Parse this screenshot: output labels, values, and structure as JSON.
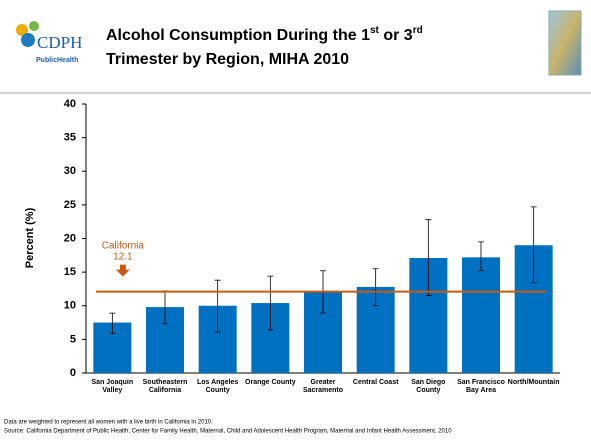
{
  "logo": {
    "text": "CDPH",
    "subtext": "PublicHealth"
  },
  "chart_data": {
    "type": "bar",
    "title": {
      "line1": [
        "Alcohol Consumption During the 1",
        "st",
        " or 3",
        "rd"
      ],
      "line2": "Trimester by Region, MIHA 2010"
    },
    "y_label": "Percent (%)",
    "categories": [
      [
        "San Joaquin",
        "Valley"
      ],
      [
        "Southeastern",
        "California"
      ],
      [
        "Los Angeles",
        "County"
      ],
      [
        "Orange County"
      ],
      [
        "Greater",
        "Sacramento"
      ],
      [
        "Central Coast"
      ],
      [
        "San Diego",
        "County"
      ],
      [
        "San Francisco",
        "Bay Area"
      ],
      [
        "North/Mountain"
      ]
    ],
    "series": [
      {
        "color": "#0070c0",
        "values": [
          7.5,
          9.8,
          10.0,
          10.4,
          12.0,
          12.8,
          17.1,
          17.2,
          19.0
        ],
        "ci_low": [
          5.9,
          7.3,
          6.1,
          6.4,
          8.9,
          10.0,
          11.5,
          15.2,
          13.4
        ],
        "ci_high": [
          8.9,
          12.2,
          13.8,
          14.4,
          15.2,
          15.5,
          22.8,
          19.5,
          24.7
        ]
      }
    ],
    "reference": {
      "label": "California",
      "value": 12.1,
      "color": "#c55a11"
    },
    "ylim": [
      0,
      40
    ],
    "yticks": [
      0,
      5,
      10,
      15,
      20,
      25,
      30,
      35,
      40
    ],
    "grid": false,
    "notes": [
      "Data are weighted to represent all women with a live birth in California in 2010.",
      "Source: California Department of Public Health, Center for Family Health, Maternal, Child and Adolescent Health Program,  Maternal and Infant Health Assessment, 2010"
    ]
  }
}
